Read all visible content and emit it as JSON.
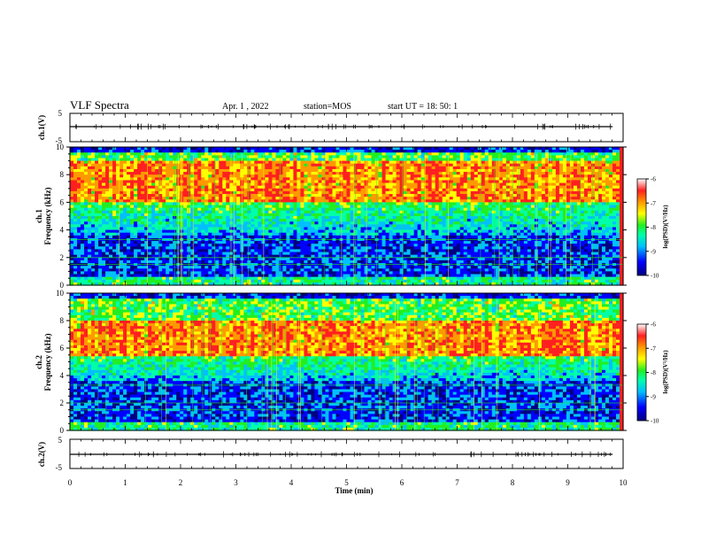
{
  "header": {
    "title": "VLF Spectra",
    "date": "Apr. 1 , 2022",
    "station": "station=MOS",
    "start": "start UT = 18: 50: 1"
  },
  "colors": {
    "scale": [
      "#000080",
      "#0000ff",
      "#00c0ff",
      "#00ffaa",
      "#22ee22",
      "#ffff00",
      "#ff9900",
      "#ff2020",
      "#ffffff"
    ]
  },
  "chart_data": [
    {
      "type": "line",
      "name": "ch1-waveform",
      "ylabel": "ch.1(V)",
      "ylim": [
        -5,
        5
      ],
      "yticks": [
        "5",
        "-5"
      ],
      "level": -0.2
    },
    {
      "type": "heatmap",
      "name": "ch1-spectrogram",
      "ylabel": "Frequency (kHz)",
      "channel_label": "ch.1",
      "ylim": [
        0,
        10
      ],
      "yticks": [
        "0",
        "2",
        "4",
        "6",
        "8",
        "10"
      ],
      "xlim": [
        0,
        10
      ],
      "intense_band_khz": [
        6,
        9
      ],
      "colorbar": {
        "label": "log(PSD)(V²/Hz)",
        "ticks": [
          "-6",
          "-7",
          "-8",
          "-9",
          "-10"
        ],
        "range": [
          -10,
          -6
        ]
      }
    },
    {
      "type": "heatmap",
      "name": "ch2-spectrogram",
      "ylabel": "Frequency (kHz)",
      "channel_label": "ch.2",
      "ylim": [
        0,
        10
      ],
      "yticks": [
        "0",
        "2",
        "4",
        "6",
        "8",
        "10"
      ],
      "xlim": [
        0,
        10
      ],
      "intense_band_khz": [
        5.5,
        8
      ],
      "colorbar": {
        "label": "log(PSD)(V²/Hz)",
        "ticks": [
          "-6",
          "-7",
          "-8",
          "-9",
          "-10"
        ],
        "range": [
          -10,
          -6
        ]
      }
    },
    {
      "type": "line",
      "name": "ch2-waveform",
      "ylabel": "ch.2(V)",
      "ylim": [
        -5,
        5
      ],
      "yticks": [
        "5",
        "-5"
      ],
      "level": -0.2
    }
  ],
  "xaxis": {
    "label": "Time (min)",
    "ticks": [
      "0",
      "1",
      "2",
      "3",
      "4",
      "5",
      "6",
      "7",
      "8",
      "9",
      "10"
    ],
    "range": [
      0,
      10
    ]
  }
}
